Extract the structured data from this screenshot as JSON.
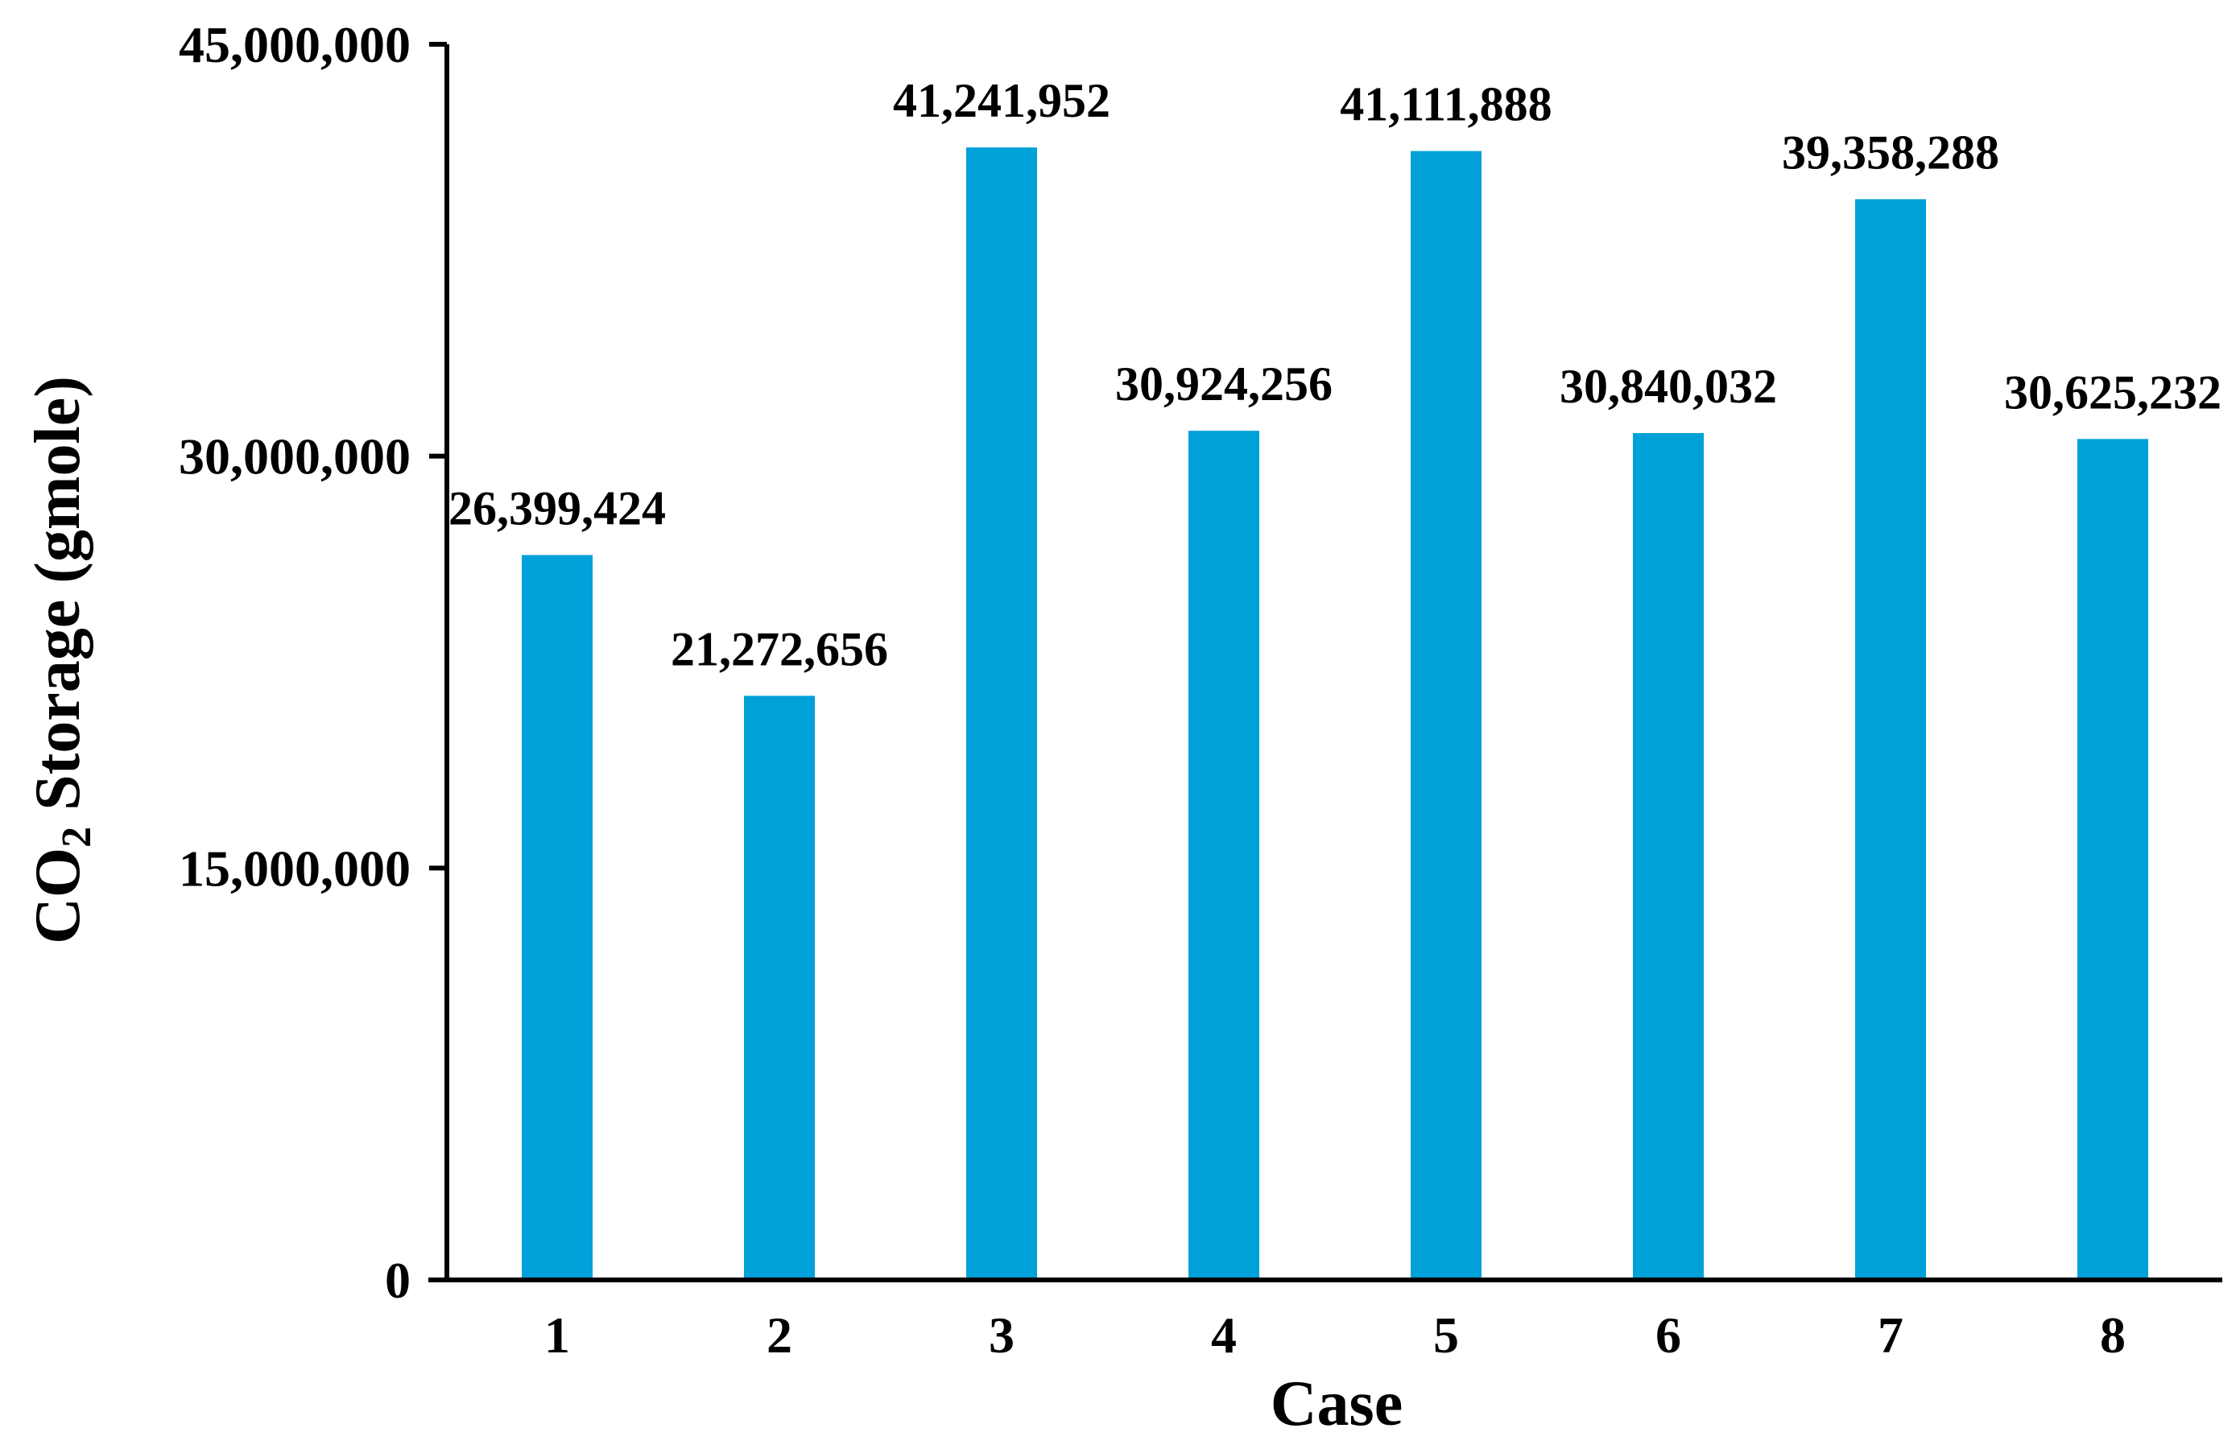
{
  "chart_data": {
    "type": "bar",
    "title": "",
    "xlabel": "Case",
    "ylabel": {
      "prefix": "CO",
      "subscript": "2",
      "suffix": " Storage (gmole)"
    },
    "categories": [
      "1",
      "2",
      "3",
      "4",
      "5",
      "6",
      "7",
      "8"
    ],
    "values": [
      26399424,
      21272656,
      41241952,
      30924256,
      41111888,
      30840032,
      39358288,
      30625232
    ],
    "data_labels": [
      "26,399,424",
      "21,272,656",
      "41,241,952",
      "30,924,256",
      "41,111,888",
      "30,840,032",
      "39,358,288",
      "30,625,232"
    ],
    "ylim": [
      0,
      45000000
    ],
    "yticks": [
      0,
      15000000,
      30000000,
      45000000
    ],
    "ytick_labels": [
      "0",
      "15,000,000",
      "30,000,000",
      "45,000,000"
    ],
    "grid": false,
    "legend": "none",
    "bar_color": "#00A0D8",
    "axis_color": "#000000"
  }
}
